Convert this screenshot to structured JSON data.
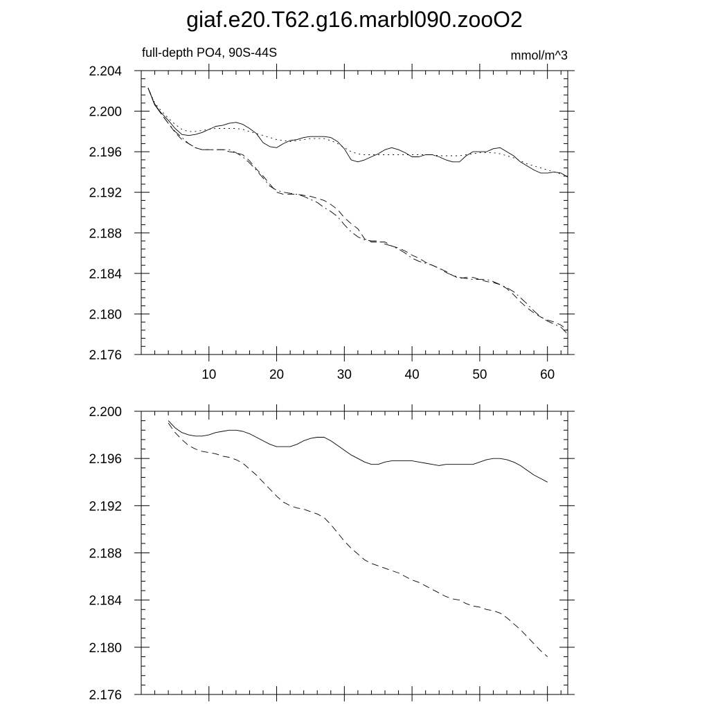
{
  "title": "giaf.e20.T62.g16.marbl090.zooO2",
  "chart_data": [
    {
      "type": "line",
      "left_label": "full-depth PO4, 90S-44S",
      "right_label": "mmol/m^3",
      "xlim": [
        0,
        63
      ],
      "ylim": [
        2.176,
        2.204
      ],
      "yticks": [
        "2.176",
        "2.180",
        "2.184",
        "2.188",
        "2.192",
        "2.196",
        "2.200",
        "2.204"
      ],
      "xticks": [
        "10",
        "20",
        "30",
        "40",
        "50",
        "60"
      ],
      "series": [
        {
          "style": "solid",
          "x": [
            1,
            2,
            3,
            4,
            5,
            6,
            7,
            8,
            9,
            10,
            11,
            12,
            13,
            14,
            15,
            16,
            17,
            18,
            19,
            20,
            21,
            22,
            23,
            24,
            25,
            26,
            27,
            28,
            29,
            30,
            31,
            32,
            33,
            34,
            35,
            36,
            37,
            38,
            39,
            40,
            41,
            42,
            43,
            44,
            45,
            46,
            47,
            48,
            49,
            50,
            51,
            52,
            53,
            54,
            55,
            56,
            57,
            58,
            59,
            60,
            61,
            62,
            63
          ],
          "y": [
            2.2023,
            2.2006,
            2.1998,
            2.1991,
            2.1983,
            2.1977,
            2.1976,
            2.1977,
            2.1979,
            2.1982,
            2.1985,
            2.1986,
            2.1988,
            2.1989,
            2.1987,
            2.1983,
            2.1978,
            2.1969,
            2.1965,
            2.1964,
            2.1968,
            2.1971,
            2.1972,
            2.1974,
            2.1975,
            2.1975,
            2.1975,
            2.1974,
            2.197,
            2.1963,
            2.1952,
            2.195,
            2.1952,
            2.1955,
            2.1958,
            2.1962,
            2.1964,
            2.1962,
            2.1959,
            2.1955,
            2.1955,
            2.1957,
            2.1957,
            2.1955,
            2.1952,
            2.195,
            2.195,
            2.1956,
            2.196,
            2.196,
            2.196,
            2.1963,
            2.1964,
            2.196,
            2.1956,
            2.195,
            2.1946,
            2.1942,
            2.1939,
            2.1939,
            2.194,
            2.1939,
            2.1935
          ]
        },
        {
          "style": "dotted",
          "x": [
            1,
            2,
            3,
            4,
            5,
            6,
            7,
            8,
            9,
            10,
            11,
            12,
            13,
            14,
            15,
            16,
            17,
            18,
            19,
            20,
            21,
            22,
            23,
            24,
            25,
            26,
            27,
            28,
            29,
            30,
            31,
            32,
            33,
            34,
            35,
            36,
            37,
            38,
            39,
            40,
            41,
            42,
            43,
            44,
            45,
            46,
            47,
            48,
            49,
            50,
            51,
            52,
            53,
            54,
            55,
            56,
            57,
            58,
            59,
            60,
            61,
            62,
            63
          ],
          "y": [
            2.2023,
            2.2008,
            2.2,
            2.1993,
            2.1987,
            2.1982,
            2.198,
            2.198,
            2.1981,
            2.1982,
            2.1983,
            2.1983,
            2.1983,
            2.1983,
            2.1982,
            2.198,
            2.1978,
            2.1976,
            2.1974,
            2.1972,
            2.1971,
            2.197,
            2.1971,
            2.1972,
            2.1973,
            2.1973,
            2.1973,
            2.1971,
            2.1968,
            2.1964,
            2.196,
            2.1958,
            2.1957,
            2.1957,
            2.1957,
            2.1957,
            2.1957,
            2.1957,
            2.1957,
            2.1957,
            2.1957,
            2.1957,
            2.1957,
            2.1956,
            2.1956,
            2.1956,
            2.1956,
            2.1957,
            2.1958,
            2.1959,
            2.1959,
            2.1959,
            2.1958,
            2.1956,
            2.1954,
            2.1951,
            2.1948,
            2.1946,
            2.1944,
            2.1942,
            2.194,
            2.1938,
            2.1936
          ]
        },
        {
          "style": "dashed",
          "x": [
            1,
            2,
            3,
            4,
            5,
            6,
            7,
            8,
            9,
            10,
            11,
            12,
            13,
            14,
            15,
            16,
            17,
            18,
            19,
            20,
            21,
            22,
            23,
            24,
            25,
            26,
            27,
            28,
            29,
            30,
            31,
            32,
            33,
            34,
            35,
            36,
            37,
            38,
            39,
            40,
            41,
            42,
            43,
            44,
            45,
            46,
            47,
            48,
            49,
            50,
            51,
            52,
            53,
            54,
            55,
            56,
            57,
            58,
            59,
            60,
            61,
            62,
            63
          ],
          "y": [
            2.2023,
            2.2006,
            2.1997,
            2.1988,
            2.1979,
            2.1972,
            2.1968,
            2.1964,
            2.1962,
            2.1962,
            2.1962,
            2.1962,
            2.196,
            2.1959,
            2.1957,
            2.1951,
            2.1943,
            2.1936,
            2.1928,
            2.192,
            2.1918,
            2.1918,
            2.1918,
            2.1917,
            2.1916,
            2.1914,
            2.1912,
            2.1908,
            2.1903,
            2.1895,
            2.1889,
            2.1884,
            2.1874,
            2.1871,
            2.1871,
            2.1871,
            2.1867,
            2.1865,
            2.1862,
            2.1858,
            2.1855,
            2.1851,
            2.1848,
            2.1845,
            2.1842,
            2.1838,
            2.1835,
            2.1836,
            2.1836,
            2.1834,
            2.1832,
            2.1831,
            2.1829,
            2.1825,
            2.1819,
            2.1812,
            2.1806,
            2.1801,
            2.1797,
            2.1794,
            2.1792,
            2.1789,
            2.1784
          ]
        },
        {
          "style": "dashdot",
          "x": [
            1,
            2,
            3,
            4,
            5,
            6,
            7,
            8,
            9,
            10,
            11,
            12,
            13,
            14,
            15,
            16,
            17,
            18,
            19,
            20,
            21,
            22,
            23,
            24,
            25,
            26,
            27,
            28,
            29,
            30,
            31,
            32,
            33,
            34,
            35,
            36,
            37,
            38,
            39,
            40,
            41,
            42,
            43,
            44,
            45,
            46,
            47,
            48,
            49,
            50,
            51,
            52,
            53,
            54,
            55,
            56,
            57,
            58,
            59,
            60,
            61,
            62,
            63
          ],
          "y": [
            2.2023,
            2.2007,
            2.1997,
            2.1988,
            2.198,
            2.1974,
            2.1968,
            2.1964,
            2.1962,
            2.1962,
            2.1962,
            2.1962,
            2.1962,
            2.1959,
            2.1955,
            2.1949,
            2.1942,
            2.1934,
            2.1926,
            2.1922,
            2.192,
            2.1919,
            2.1918,
            2.1916,
            2.1913,
            2.191,
            2.1905,
            2.1901,
            2.1896,
            2.1888,
            2.1881,
            2.1876,
            2.1873,
            2.1872,
            2.1872,
            2.1869,
            2.1867,
            2.1864,
            2.186,
            2.1855,
            2.1852,
            2.185,
            2.1848,
            2.1845,
            2.1841,
            2.1838,
            2.1836,
            2.1835,
            2.1834,
            2.1834,
            2.1834,
            2.1832,
            2.1829,
            2.1826,
            2.1822,
            2.1816,
            2.181,
            2.1803,
            2.1797,
            2.1793,
            2.179,
            2.1787,
            2.178
          ]
        }
      ]
    },
    {
      "type": "line",
      "xlim": [
        0,
        63
      ],
      "ylim": [
        2.176,
        2.2
      ],
      "yticks": [
        "2.176",
        "2.180",
        "2.184",
        "2.188",
        "2.192",
        "2.196",
        "2.200"
      ],
      "xticks": [],
      "series": [
        {
          "style": "solid",
          "x": [
            4,
            5,
            6,
            7,
            8,
            9,
            10,
            11,
            12,
            13,
            14,
            15,
            16,
            17,
            18,
            19,
            20,
            21,
            22,
            23,
            24,
            25,
            26,
            27,
            28,
            29,
            30,
            31,
            32,
            33,
            34,
            35,
            36,
            37,
            38,
            39,
            40,
            41,
            42,
            43,
            44,
            45,
            46,
            47,
            48,
            49,
            50,
            51,
            52,
            53,
            54,
            55,
            56,
            57,
            58,
            59,
            60
          ],
          "y": [
            2.1992,
            2.1986,
            2.1982,
            2.198,
            2.1979,
            2.1979,
            2.198,
            2.1982,
            2.1983,
            2.1984,
            2.1984,
            2.1983,
            2.1981,
            2.1978,
            2.1975,
            2.1972,
            2.197,
            2.197,
            2.197,
            2.1972,
            2.1975,
            2.1977,
            2.1978,
            2.1978,
            2.1975,
            2.1971,
            2.1967,
            2.1963,
            2.196,
            2.1957,
            2.1955,
            2.1955,
            2.1957,
            2.1958,
            2.1958,
            2.1958,
            2.1958,
            2.1957,
            2.1956,
            2.1955,
            2.1954,
            2.1955,
            2.1955,
            2.1955,
            2.1955,
            2.1955,
            2.1957,
            2.1959,
            2.196,
            2.196,
            2.1959,
            2.1957,
            2.1954,
            2.195,
            2.1946,
            2.1943,
            2.194
          ]
        },
        {
          "style": "dashed",
          "x": [
            4,
            5,
            6,
            7,
            8,
            9,
            10,
            11,
            12,
            13,
            14,
            15,
            16,
            17,
            18,
            19,
            20,
            21,
            22,
            23,
            24,
            25,
            26,
            27,
            28,
            29,
            30,
            31,
            32,
            33,
            34,
            35,
            36,
            37,
            38,
            39,
            40,
            41,
            42,
            43,
            44,
            45,
            46,
            47,
            48,
            49,
            50,
            51,
            52,
            53,
            54,
            55,
            56,
            57,
            58,
            59,
            60
          ],
          "y": [
            2.199,
            2.1982,
            2.1976,
            2.1971,
            2.1968,
            2.1966,
            2.1965,
            2.1964,
            2.1962,
            2.1961,
            2.1959,
            2.1956,
            2.1951,
            2.1946,
            2.194,
            2.1934,
            2.1928,
            2.1923,
            2.192,
            2.1918,
            2.1917,
            2.1915,
            2.1913,
            2.191,
            2.1904,
            2.1897,
            2.189,
            2.1884,
            2.1879,
            2.1874,
            2.1871,
            2.1869,
            2.1867,
            2.1865,
            2.1863,
            2.186,
            2.1857,
            2.1855,
            2.1852,
            2.1849,
            2.1846,
            2.1843,
            2.1841,
            2.184,
            2.1837,
            2.1835,
            2.1834,
            2.1832,
            2.1831,
            2.1829,
            2.1825,
            2.182,
            2.1815,
            2.1809,
            2.1803,
            2.1797,
            2.1792
          ]
        }
      ]
    }
  ]
}
